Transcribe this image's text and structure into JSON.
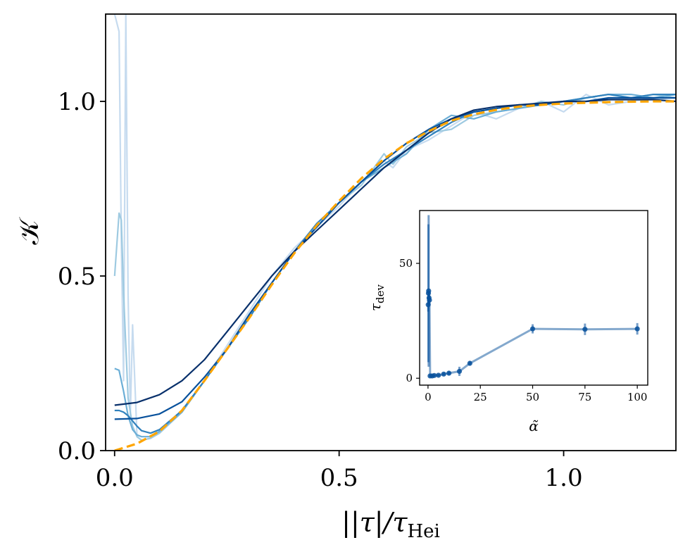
{
  "chart_data": [
    {
      "type": "line",
      "xlabel": "|τ|/τHei",
      "xlabel_main": "|τ|/τ",
      "xlabel_sub": "Hei",
      "ylabel": "𝒦",
      "xlim": [
        -0.02,
        1.25
      ],
      "ylim": [
        0.0,
        1.25
      ],
      "xticks": [
        0.0,
        0.5,
        1.0
      ],
      "xtick_labels": [
        "0.0",
        "0.5",
        "1.0"
      ],
      "yticks": [
        0.0,
        0.5,
        1.0
      ],
      "ytick_labels": [
        "0.0",
        "0.5",
        "1.0"
      ],
      "grid": false,
      "series": [
        {
          "style": "solid",
          "color": "#c6dbef",
          "x": [
            0.0,
            0.01,
            0.015,
            0.02,
            0.025,
            0.03,
            0.035,
            0.04,
            0.05,
            0.06,
            0.08,
            0.1,
            0.15,
            0.2,
            0.25,
            0.3,
            0.35,
            0.4,
            0.45,
            0.5,
            0.55,
            0.6,
            0.62,
            0.65,
            0.7,
            0.75,
            0.8,
            0.85,
            0.9,
            0.95,
            1.0,
            1.05,
            1.1,
            1.15,
            1.2,
            1.25
          ],
          "y": [
            1.25,
            1.2,
            0.6,
            0.2,
            1.25,
            0.45,
            0.1,
            0.36,
            0.04,
            0.03,
            0.035,
            0.05,
            0.11,
            0.2,
            0.3,
            0.4,
            0.5,
            0.58,
            0.64,
            0.7,
            0.77,
            0.83,
            0.81,
            0.86,
            0.89,
            0.93,
            0.97,
            0.95,
            0.98,
            1.0,
            0.97,
            1.02,
            0.99,
            1.0,
            1.01,
            1.0
          ]
        },
        {
          "style": "solid",
          "color": "#9ecae1",
          "x": [
            0.0,
            0.01,
            0.015,
            0.02,
            0.03,
            0.04,
            0.05,
            0.06,
            0.08,
            0.1,
            0.15,
            0.2,
            0.25,
            0.3,
            0.35,
            0.4,
            0.45,
            0.5,
            0.55,
            0.6,
            0.62,
            0.65,
            0.7,
            0.75,
            0.8,
            0.85,
            0.9,
            0.95,
            1.0,
            1.05,
            1.1,
            1.15,
            1.2,
            1.25
          ],
          "y": [
            0.5,
            0.68,
            0.66,
            0.45,
            0.15,
            0.07,
            0.04,
            0.03,
            0.035,
            0.05,
            0.11,
            0.2,
            0.29,
            0.39,
            0.48,
            0.57,
            0.64,
            0.71,
            0.76,
            0.85,
            0.82,
            0.87,
            0.91,
            0.92,
            0.96,
            0.97,
            0.98,
            1.0,
            0.99,
            1.01,
            1.02,
            1.01,
            1.02,
            1.01
          ]
        },
        {
          "style": "solid",
          "color": "#6baed6",
          "x": [
            0.0,
            0.01,
            0.02,
            0.03,
            0.04,
            0.05,
            0.06,
            0.08,
            0.1,
            0.15,
            0.2,
            0.25,
            0.3,
            0.35,
            0.4,
            0.45,
            0.5,
            0.55,
            0.6,
            0.65,
            0.7,
            0.75,
            0.8,
            0.85,
            0.9,
            0.95,
            1.0,
            1.05,
            1.1,
            1.15,
            1.2,
            1.25
          ],
          "y": [
            0.235,
            0.23,
            0.17,
            0.1,
            0.06,
            0.045,
            0.04,
            0.04,
            0.055,
            0.11,
            0.2,
            0.29,
            0.39,
            0.48,
            0.57,
            0.64,
            0.71,
            0.77,
            0.81,
            0.85,
            0.92,
            0.96,
            0.95,
            0.97,
            0.98,
            0.99,
            1.0,
            1.01,
            1.02,
            1.02,
            1.01,
            1.02
          ]
        },
        {
          "style": "solid",
          "color": "#3182bd",
          "x": [
            0.0,
            0.01,
            0.02,
            0.03,
            0.04,
            0.05,
            0.06,
            0.08,
            0.1,
            0.15,
            0.2,
            0.25,
            0.3,
            0.35,
            0.4,
            0.45,
            0.5,
            0.55,
            0.6,
            0.65,
            0.7,
            0.75,
            0.8,
            0.85,
            0.9,
            0.95,
            1.0,
            1.05,
            1.1,
            1.15,
            1.2,
            1.25
          ],
          "y": [
            0.115,
            0.115,
            0.11,
            0.1,
            0.085,
            0.07,
            0.057,
            0.05,
            0.06,
            0.115,
            0.2,
            0.29,
            0.38,
            0.48,
            0.57,
            0.65,
            0.71,
            0.77,
            0.82,
            0.86,
            0.9,
            0.94,
            0.97,
            0.98,
            0.99,
            0.99,
            1.0,
            1.01,
            1.02,
            1.01,
            1.02,
            1.02
          ]
        },
        {
          "style": "solid",
          "color": "#08519c",
          "x": [
            0.0,
            0.05,
            0.1,
            0.15,
            0.2,
            0.25,
            0.3,
            0.35,
            0.4,
            0.45,
            0.5,
            0.55,
            0.6,
            0.65,
            0.7,
            0.75,
            0.8,
            0.85,
            0.9,
            0.95,
            1.0,
            1.05,
            1.1,
            1.15,
            1.2,
            1.25
          ],
          "y": [
            0.09,
            0.092,
            0.105,
            0.14,
            0.21,
            0.29,
            0.39,
            0.48,
            0.57,
            0.64,
            0.71,
            0.77,
            0.83,
            0.88,
            0.92,
            0.95,
            0.97,
            0.98,
            0.99,
            0.99,
            1.0,
            1.0,
            1.01,
            1.01,
            1.01,
            1.01
          ]
        },
        {
          "style": "solid",
          "color": "#08306b",
          "x": [
            0.0,
            0.05,
            0.1,
            0.15,
            0.2,
            0.25,
            0.3,
            0.35,
            0.4,
            0.45,
            0.5,
            0.55,
            0.6,
            0.65,
            0.7,
            0.75,
            0.8,
            0.85,
            0.9,
            0.95,
            1.0,
            1.05,
            1.1,
            1.15,
            1.2,
            1.25
          ],
          "y": [
            0.13,
            0.138,
            0.16,
            0.2,
            0.26,
            0.34,
            0.42,
            0.5,
            0.57,
            0.63,
            0.69,
            0.75,
            0.81,
            0.86,
            0.91,
            0.95,
            0.975,
            0.985,
            0.99,
            0.995,
            1.0,
            1.0,
            1.005,
            1.005,
            1.005,
            1.0
          ]
        },
        {
          "style": "dashed",
          "color": "#ffa500",
          "x": [
            0.0,
            0.05,
            0.1,
            0.15,
            0.2,
            0.25,
            0.3,
            0.35,
            0.4,
            0.45,
            0.5,
            0.55,
            0.6,
            0.65,
            0.7,
            0.75,
            0.8,
            0.85,
            0.9,
            0.95,
            1.0,
            1.05,
            1.1,
            1.15,
            1.2,
            1.25
          ],
          "y": [
            0.0,
            0.02,
            0.055,
            0.115,
            0.2,
            0.29,
            0.38,
            0.475,
            0.565,
            0.645,
            0.715,
            0.78,
            0.835,
            0.88,
            0.915,
            0.945,
            0.963,
            0.976,
            0.985,
            0.99,
            0.994,
            0.996,
            0.998,
            0.999,
            1.0,
            1.0
          ]
        }
      ]
    },
    {
      "type": "scatter",
      "xlabel": "α̃",
      "ylabel": "τdev",
      "ylabel_main": "τ",
      "ylabel_sub": "dev",
      "xlim": [
        -4,
        105
      ],
      "ylim": [
        -3,
        73
      ],
      "xticks": [
        0,
        25,
        50,
        75,
        100
      ],
      "xtick_labels": [
        "0",
        "25",
        "50",
        "75",
        "100"
      ],
      "yticks": [
        0,
        50
      ],
      "ytick_labels": [
        "0",
        "50"
      ],
      "grid": false,
      "series": [
        {
          "color": "#08519c",
          "connected": true,
          "x": [
            0.1,
            0.2,
            0.3,
            0.5,
            0.7,
            1.0,
            2.0,
            3.0,
            5.0,
            7.5,
            10.0,
            15.0,
            20.0,
            50.0,
            75.0,
            100.0
          ],
          "y": [
            32.0,
            37.0,
            38.0,
            35.0,
            34.0,
            1.0,
            1.0,
            1.2,
            1.3,
            1.8,
            2.2,
            3.0,
            6.5,
            21.5,
            21.3,
            21.5
          ],
          "yerr": [
            3.0,
            30.0,
            33.0,
            3.0,
            2.0,
            0.4,
            0.4,
            0.5,
            0.5,
            0.6,
            0.8,
            2.0,
            1.0,
            2.0,
            2.5,
            2.5
          ]
        }
      ]
    }
  ]
}
